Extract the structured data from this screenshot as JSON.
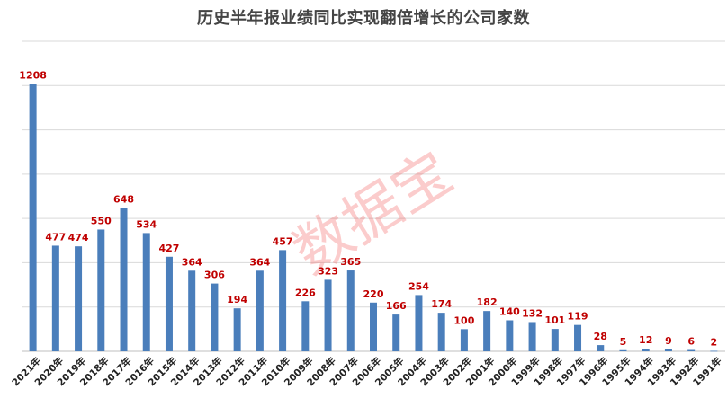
{
  "chart_data": {
    "type": "bar",
    "title": "历史半年报业绩同比实现翻倍增长的公司家数",
    "xlabel": "",
    "ylabel": "",
    "ylim": [
      0,
      1400
    ],
    "grid": true,
    "bar_color": "#4a7ebb",
    "label_color": "#c00000",
    "watermark": "数据宝",
    "watermark_color": "#f24a4a",
    "categories": [
      "2021年",
      "2020年",
      "2019年",
      "2018年",
      "2017年",
      "2016年",
      "2015年",
      "2014年",
      "2013年",
      "2012年",
      "2011年",
      "2010年",
      "2009年",
      "2008年",
      "2007年",
      "2006年",
      "2005年",
      "2004年",
      "2003年",
      "2002年",
      "2001年",
      "2000年",
      "1999年",
      "1998年",
      "1997年",
      "1996年",
      "1995年",
      "1994年",
      "1993年",
      "1992年",
      "1991年"
    ],
    "values": [
      1208,
      477,
      474,
      550,
      648,
      534,
      427,
      364,
      306,
      194,
      364,
      457,
      226,
      323,
      365,
      220,
      166,
      254,
      174,
      100,
      182,
      140,
      132,
      101,
      119,
      28,
      5,
      12,
      9,
      6,
      2
    ]
  }
}
